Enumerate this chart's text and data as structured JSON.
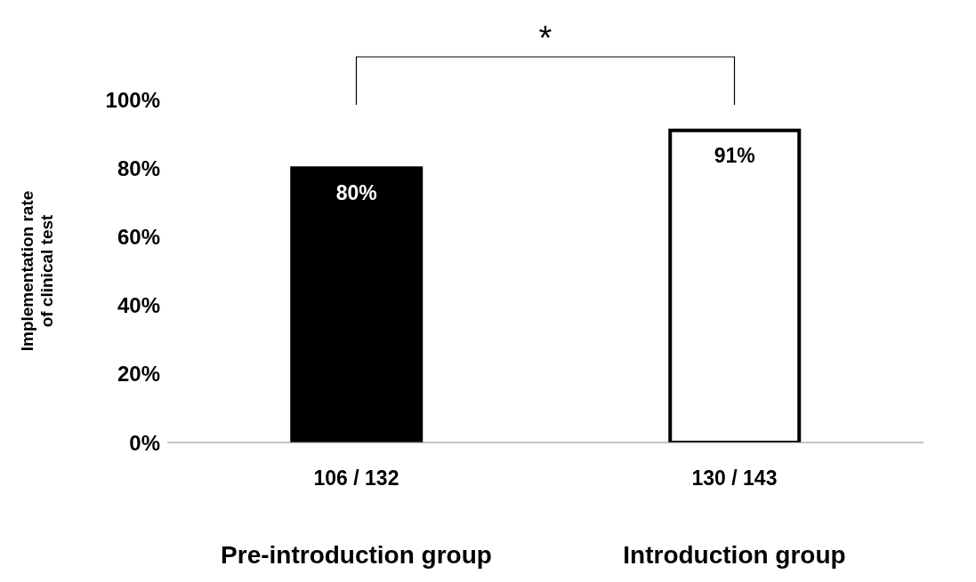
{
  "chart_data": {
    "type": "bar",
    "categories": [
      "Pre-introduction group",
      "Introduction group"
    ],
    "values": [
      80,
      91
    ],
    "colors": [
      "#000000",
      "#ffffff"
    ],
    "value_labels": [
      "80%",
      "91%"
    ],
    "ylabel": "Implementation rate\nof clinical  test",
    "ylim": [
      0,
      100
    ],
    "yticks": [
      {
        "value": 0,
        "label": "0%"
      },
      {
        "value": 20,
        "label": "20%"
      },
      {
        "value": 40,
        "label": "40%"
      },
      {
        "value": 60,
        "label": "60%"
      },
      {
        "value": 80,
        "label": "80%"
      },
      {
        "value": 100,
        "label": "100%"
      }
    ],
    "annotations": [
      "106 / 132",
      "130 / 143",
      "*"
    ],
    "grid": false,
    "legend": false
  }
}
